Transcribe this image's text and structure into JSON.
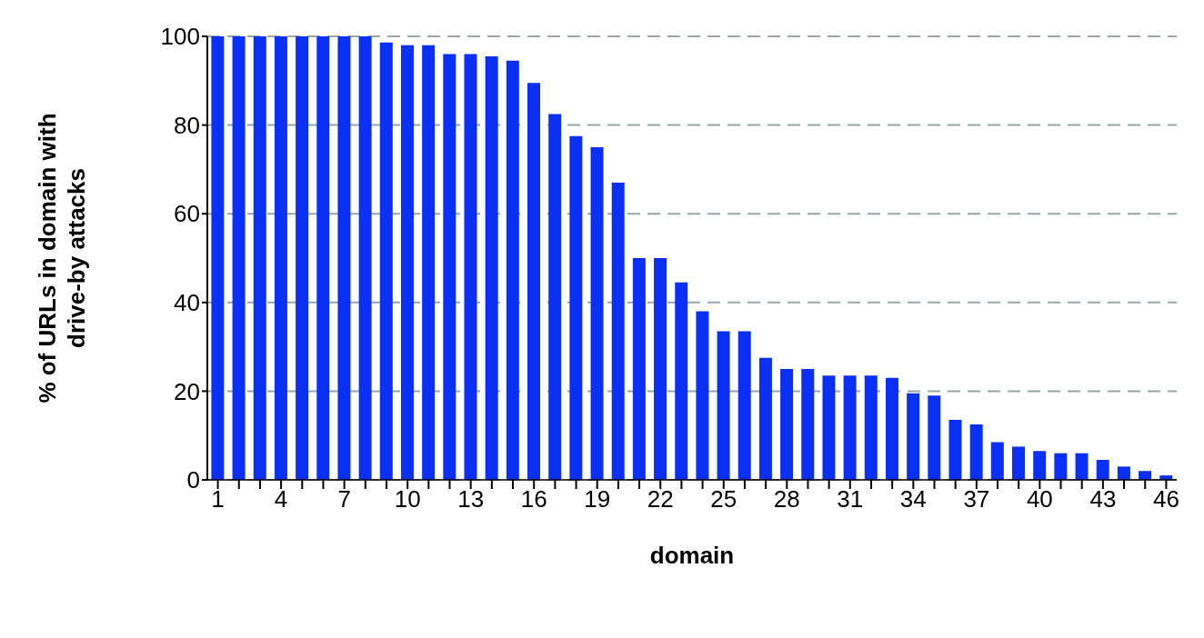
{
  "chart_data": {
    "type": "bar",
    "xlabel": "domain",
    "ylabel": "% of URLs in domain with drive-by attacks",
    "categories": [
      "1",
      null,
      null,
      "4",
      null,
      null,
      "7",
      null,
      null,
      "10",
      null,
      null,
      "13",
      null,
      null,
      "16",
      null,
      null,
      "19",
      null,
      null,
      "22",
      null,
      null,
      "25",
      null,
      null,
      "28",
      null,
      null,
      "31",
      null,
      null,
      "34",
      null,
      null,
      "37",
      null,
      null,
      "40",
      null,
      null,
      "43",
      null,
      null,
      "46"
    ],
    "values": [
      100,
      100,
      100,
      100,
      100,
      100,
      100,
      100,
      98.6,
      98,
      98,
      96,
      96,
      95.5,
      94.5,
      89.5,
      82.5,
      77.5,
      75,
      67,
      50,
      50,
      44.5,
      38,
      33.5,
      33.5,
      27.5,
      25,
      25,
      23.5,
      23.5,
      23.5,
      23,
      19.5,
      19,
      13.5,
      12.5,
      8.5,
      7.5,
      6.5,
      6,
      6,
      4.5,
      3,
      2,
      1
    ],
    "color": "#0a30f5",
    "ylim": [
      0,
      100
    ],
    "yticks": [
      0,
      20,
      40,
      60,
      80,
      100
    ],
    "grid": "y"
  }
}
